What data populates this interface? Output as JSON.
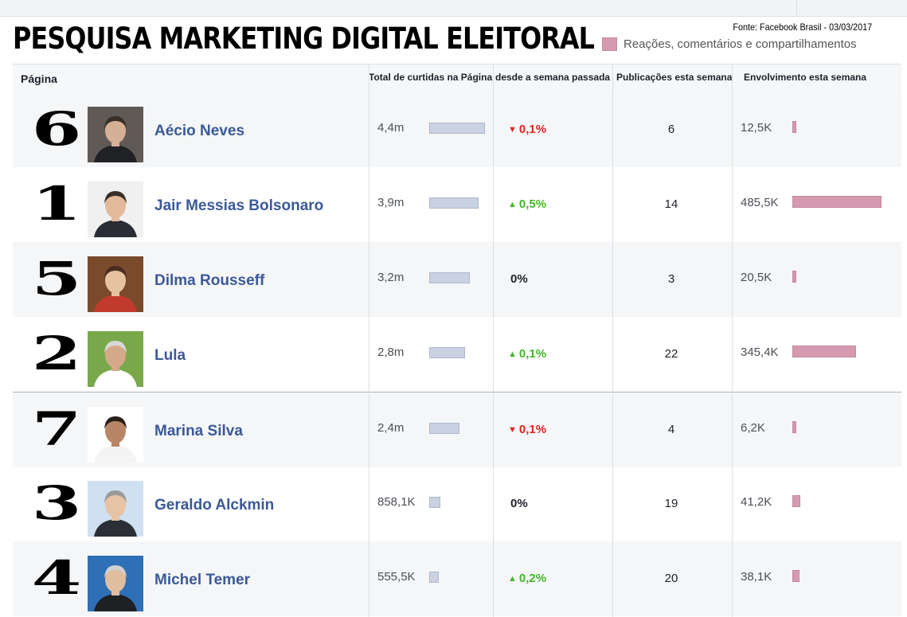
{
  "header": {
    "title": "PESQUISA MARKETING DIGITAL ELEITORAL",
    "source": "Fonte: Facebook Brasil - 03/03/2017",
    "legend_label": "Reações, comentários e compartilhamentos",
    "legend_color": "#d59aaf"
  },
  "columns": {
    "page": "Página",
    "likes": "Total de curtidas na Página",
    "change": "desde a semana passada",
    "posts": "Publicações esta semana",
    "engagement": "Envolvimento esta semana"
  },
  "colors": {
    "likes_bar": "#c9d1e2",
    "engagement_bar": "#d59aaf",
    "name": "#3b5998",
    "up": "#42b72a",
    "down": "#e02424"
  },
  "rows": [
    {
      "rank": "6",
      "name": "Aécio Neves",
      "likes": "4,4m",
      "likes_value": 4.4,
      "change": "0,1%",
      "direction": "down",
      "posts": "6",
      "engagement": "12,5K",
      "engagement_value": 12.5,
      "photo": "aecio-photo"
    },
    {
      "rank": "1",
      "name": "Jair Messias Bolsonaro",
      "likes": "3,9m",
      "likes_value": 3.9,
      "change": "0,5%",
      "direction": "up",
      "posts": "14",
      "engagement": "485,5K",
      "engagement_value": 485.5,
      "photo": "bolsonaro-photo"
    },
    {
      "rank": "5",
      "name": "Dilma Rousseff",
      "likes": "3,2m",
      "likes_value": 3.2,
      "change": "0%",
      "direction": "none",
      "posts": "3",
      "engagement": "20,5K",
      "engagement_value": 20.5,
      "photo": "dilma-photo"
    },
    {
      "rank": "2",
      "name": "Lula",
      "likes": "2,8m",
      "likes_value": 2.8,
      "change": "0,1%",
      "direction": "up",
      "posts": "22",
      "engagement": "345,4K",
      "engagement_value": 345.4,
      "photo": "lula-photo"
    },
    {
      "rank": "7",
      "name": "Marina Silva",
      "likes": "2,4m",
      "likes_value": 2.4,
      "change": "0,1%",
      "direction": "down",
      "posts": "4",
      "engagement": "6,2K",
      "engagement_value": 6.2,
      "photo": "marina-photo"
    },
    {
      "rank": "3",
      "name": "Geraldo Alckmin",
      "likes": "858,1K",
      "likes_value": 0.8581,
      "change": "0%",
      "direction": "none",
      "posts": "19",
      "engagement": "41,2K",
      "engagement_value": 41.2,
      "photo": "alckmin-photo"
    },
    {
      "rank": "4",
      "name": "Michel Temer",
      "likes": "555,5K",
      "likes_value": 0.5555,
      "change": "0,2%",
      "direction": "up",
      "posts": "20",
      "engagement": "38,1K",
      "engagement_value": 38.1,
      "photo": "temer-photo"
    }
  ]
}
